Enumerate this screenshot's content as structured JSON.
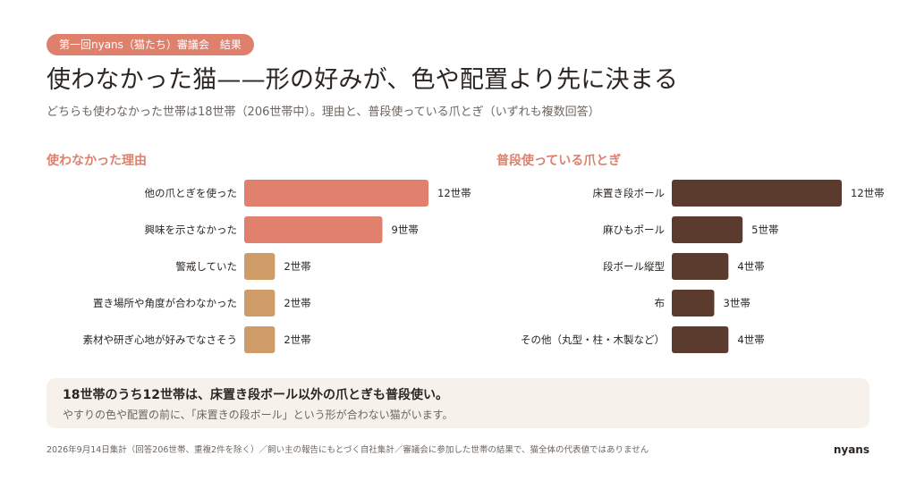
{
  "header": {
    "badge": "第一回nyans（猫たち）審議会　結果",
    "title": "使わなかった猫——形の好みが、色や配置より先に決まる",
    "subtitle": "どちらも使わなかった世帯は18世帯（206世帯中）。理由と、普段使っている爪とぎ（いずれも複数回答）"
  },
  "colors": {
    "accent": "#de806c",
    "bar_highlight": "#e0806d",
    "bar_minor": "#cf9b67",
    "bar_dark": "#5b3b2e",
    "callout_bg": "#f6f1eb"
  },
  "chart_data": [
    {
      "type": "bar",
      "orientation": "horizontal",
      "title": "使わなかった理由",
      "categories": [
        "他の爪とぎを使った",
        "興味を示さなかった",
        "警戒していた",
        "置き場所や角度が合わなかった",
        "素材や研ぎ心地が好みでなさそう"
      ],
      "values": [
        12,
        9,
        2,
        2,
        2
      ],
      "value_labels": [
        "12世帯",
        "9世帯",
        "2世帯",
        "2世帯",
        "2世帯"
      ],
      "unit": "世帯",
      "bar_colors": [
        "#e0806d",
        "#e0806d",
        "#cf9b67",
        "#cf9b67",
        "#cf9b67"
      ],
      "xlim": [
        0,
        12
      ],
      "grid": false
    },
    {
      "type": "bar",
      "orientation": "horizontal",
      "title": "普段使っている爪とぎ",
      "categories": [
        "床置き段ボール",
        "麻ひもポール",
        "段ボール縦型",
        "布",
        "その他（丸型・柱・木製など）"
      ],
      "values": [
        12,
        5,
        4,
        3,
        4
      ],
      "value_labels": [
        "12世帯",
        "5世帯",
        "4世帯",
        "3世帯",
        "4世帯"
      ],
      "unit": "世帯",
      "bar_colors": [
        "#5b3b2e",
        "#5b3b2e",
        "#5b3b2e",
        "#5b3b2e",
        "#5b3b2e"
      ],
      "xlim": [
        0,
        12
      ],
      "grid": false
    }
  ],
  "callout": {
    "main": "18世帯のうち12世帯は、床置き段ボール以外の爪とぎも普段使い。",
    "sub": "やすりの色や配置の前に、「床置きの段ボール」という形が合わない猫がいます。"
  },
  "footer": {
    "note": "2026年9月14日集計（回答206世帯、重複2件を除く）／飼い主の報告にもとづく自社集計／審議会に参加した世帯の結果で、猫全体の代表値ではありません",
    "brand": "nyans"
  }
}
